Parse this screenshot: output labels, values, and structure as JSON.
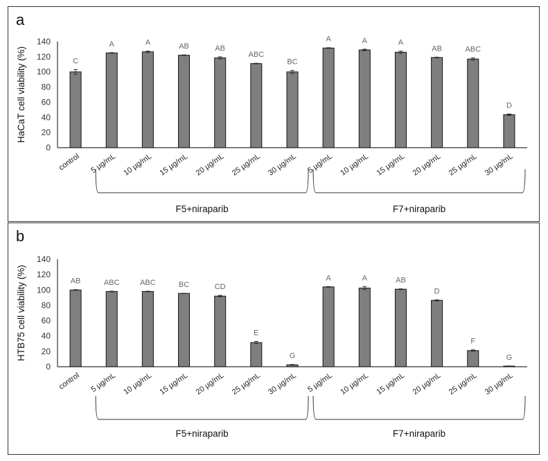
{
  "chart_data": [
    {
      "type": "bar",
      "panel_label": "a",
      "title": "",
      "xlabel": "",
      "ylabel": "HaCaT cell viability (%)",
      "ylim": [
        0,
        140
      ],
      "yticks": [
        0,
        20,
        40,
        60,
        80,
        100,
        120,
        140
      ],
      "grid": false,
      "categories": [
        "control",
        "5 µg/mL",
        "10 µg/mL",
        "15 µg/mL",
        "20 µg/mL",
        "25 µg/mL",
        "30 µg/mL",
        "5 µg/mL",
        "10 µg/mL",
        "15 µg/mL",
        "20 µg/mL",
        "25 µg/mL",
        "30 µg/mL"
      ],
      "values": [
        100,
        125,
        126.5,
        122,
        118.5,
        111,
        100,
        131.5,
        129,
        126,
        119,
        117,
        43.5
      ],
      "errors": [
        3,
        0.5,
        1,
        0.5,
        1.5,
        0.5,
        2,
        0.5,
        1,
        1.5,
        0.5,
        1.5,
        1
      ],
      "letters": [
        "C",
        "A",
        "A",
        "AB",
        "AB",
        "ABC",
        "BC",
        "A",
        "A",
        "A",
        "AB",
        "ABC",
        "D"
      ],
      "groups": [
        {
          "label": "F5+niraparib",
          "from": 1,
          "to": 6
        },
        {
          "label": "F7+niraparib",
          "from": 7,
          "to": 12
        }
      ],
      "bar_color": "#7f7f7f"
    },
    {
      "type": "bar",
      "panel_label": "b",
      "title": "",
      "xlabel": "",
      "ylabel": "HTB75 cell viability (%)",
      "ylim": [
        0,
        140
      ],
      "yticks": [
        0,
        20,
        40,
        60,
        80,
        100,
        120,
        140
      ],
      "grid": false,
      "categories": [
        "control",
        "5 µg/mL",
        "10 µg/mL",
        "15 µg/mL",
        "20 µg/mL",
        "25 µg/mL",
        "30 µg/mL",
        "5 µg/mL",
        "10 µg/mL",
        "15 µg/mL",
        "20 µg/mL",
        "25 µg/mL",
        "30 µg/mL"
      ],
      "values": [
        100,
        98,
        98,
        95.5,
        92,
        31.5,
        2.5,
        104,
        102.5,
        101,
        86.5,
        21,
        0.8
      ],
      "errors": [
        0.5,
        0.5,
        0.5,
        0.3,
        1,
        1.5,
        0.5,
        0.5,
        2,
        0.5,
        0.8,
        1,
        0.3
      ],
      "letters": [
        "AB",
        "ABC",
        "ABC",
        "BC",
        "CD",
        "E",
        "G",
        "A",
        "A",
        "AB",
        "D",
        "F",
        "G"
      ],
      "groups": [
        {
          "label": "F5+niraparib",
          "from": 1,
          "to": 6
        },
        {
          "label": "F7+niraparib",
          "from": 7,
          "to": 12
        }
      ],
      "bar_color": "#7f7f7f"
    }
  ],
  "panels": {
    "a": {
      "label": "a",
      "ylabel": "HaCaT cell viability (%)",
      "group1": "F5+niraparib",
      "group2": "F7+niraparib"
    },
    "b": {
      "label": "b",
      "ylabel": "HTB75 cell viability (%)",
      "group1": "F5+niraparib",
      "group2": "F7+niraparib"
    }
  }
}
